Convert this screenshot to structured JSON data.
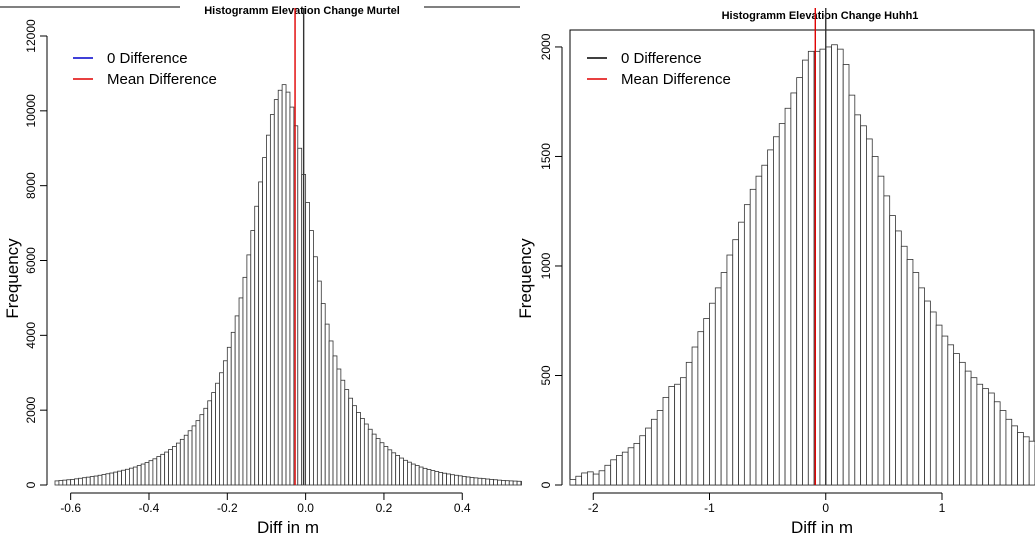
{
  "chart_data": [
    {
      "type": "bar",
      "title": "Histogramm Elevation Change Murtel",
      "xlabel": "Diff in m",
      "ylabel": "Frequency",
      "xlim": [
        -0.64,
        0.55
      ],
      "ylim": [
        0,
        12000
      ],
      "xticks": [
        -0.6,
        -0.4,
        -0.2,
        0.0,
        0.2,
        0.4
      ],
      "xtick_labels": [
        "-0.6",
        "-0.4",
        "-0.2",
        "0.0",
        "0.2",
        "0.4"
      ],
      "yticks": [
        0,
        2000,
        4000,
        6000,
        8000,
        10000,
        12000
      ],
      "ytick_labels": [
        "0",
        "2000",
        "4000",
        "6000",
        "8000",
        "10000",
        "12000"
      ],
      "bin_start": -0.64,
      "bin_width": 0.01,
      "values": [
        110,
        120,
        130,
        140,
        150,
        165,
        180,
        195,
        210,
        225,
        240,
        260,
        280,
        300,
        320,
        345,
        370,
        395,
        420,
        450,
        480,
        520,
        560,
        600,
        650,
        700,
        760,
        820,
        880,
        950,
        1030,
        1120,
        1220,
        1330,
        1450,
        1580,
        1720,
        1880,
        2050,
        2250,
        2470,
        2720,
        3000,
        3320,
        3680,
        4080,
        4520,
        5000,
        5550,
        6150,
        6800,
        7450,
        8100,
        8750,
        9350,
        9900,
        10300,
        10550,
        10700,
        10500,
        10100,
        9600,
        9000,
        8300,
        7550,
        6800,
        6100,
        5450,
        4850,
        4300,
        3850,
        3450,
        3100,
        2800,
        2550,
        2320,
        2120,
        1940,
        1780,
        1630,
        1490,
        1360,
        1240,
        1130,
        1030,
        940,
        860,
        790,
        720,
        660,
        610,
        560,
        520,
        480,
        445,
        415,
        385,
        360,
        335,
        315,
        295,
        275,
        260,
        245,
        230,
        215,
        200,
        190,
        180,
        170,
        160,
        150,
        140,
        130,
        120,
        115,
        110,
        105,
        100,
        95,
        90
      ],
      "vlines": [
        {
          "name": "0 Difference",
          "x": -0.005,
          "color": "#333333"
        },
        {
          "name": "Mean Difference",
          "x": -0.027,
          "color": "#e00000"
        }
      ],
      "legend": [
        {
          "label": "0 Difference",
          "color": "#0000cc"
        },
        {
          "label": "Mean Difference",
          "color": "#e00000"
        }
      ],
      "legend_position": "top-left"
    },
    {
      "type": "bar",
      "title": "Histogramm Elevation Change Huhh1",
      "xlabel": "Diff in m",
      "ylabel": "Frequency",
      "xlim": [
        -2.2,
        1.8
      ],
      "ylim": [
        0,
        2050
      ],
      "xticks": [
        -2,
        -1,
        0,
        1
      ],
      "xtick_labels": [
        "-2",
        "-1",
        "0",
        "1"
      ],
      "yticks": [
        0,
        500,
        1000,
        1500,
        2000
      ],
      "ytick_labels": [
        "0",
        "500",
        "1000",
        "1500",
        "2000"
      ],
      "bin_start": -2.2,
      "bin_width": 0.05,
      "values": [
        25,
        40,
        55,
        60,
        50,
        65,
        90,
        115,
        135,
        150,
        170,
        190,
        225,
        260,
        300,
        340,
        400,
        450,
        460,
        490,
        560,
        630,
        700,
        760,
        830,
        900,
        970,
        1050,
        1120,
        1200,
        1280,
        1350,
        1410,
        1460,
        1530,
        1590,
        1650,
        1720,
        1790,
        1860,
        1940,
        1980,
        1980,
        1990,
        2000,
        2010,
        1990,
        1920,
        1780,
        1690,
        1640,
        1580,
        1500,
        1410,
        1320,
        1230,
        1160,
        1090,
        1030,
        970,
        900,
        840,
        790,
        730,
        680,
        640,
        600,
        560,
        520,
        490,
        460,
        440,
        420,
        380,
        340,
        300,
        270,
        240,
        220,
        200,
        180,
        170,
        160,
        150
      ],
      "vlines": [
        {
          "name": "0 Difference",
          "x": 0.0,
          "color": "#333333"
        },
        {
          "name": "Mean Difference",
          "x": -0.09,
          "color": "#e00000"
        }
      ],
      "legend": [
        {
          "label": "0 Difference",
          "color": "#000000"
        },
        {
          "label": "Mean Difference",
          "color": "#e00000"
        }
      ],
      "legend_position": "top-left"
    }
  ]
}
